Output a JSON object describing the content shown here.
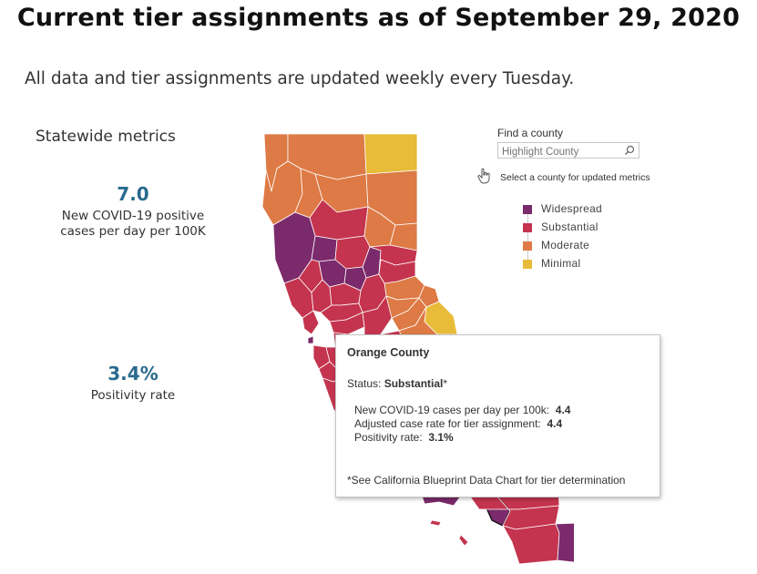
{
  "page": {
    "title": "Current tier assignments as of September 29, 2020",
    "subtitle": "All data and tier assignments are updated weekly every Tuesday."
  },
  "statewide": {
    "heading": "Statewide metrics",
    "cases_value": "7.0",
    "cases_label_line1": "New COVID-19 positive",
    "cases_label_line2": "cases per day per 100K",
    "positivity_value": "3.4%",
    "positivity_label": "Positivity rate"
  },
  "search": {
    "label": "Find a county",
    "placeholder": "Highlight County",
    "hint": "Select a county for updated metrics"
  },
  "legend": [
    {
      "label": "Widespread",
      "color": "#7b2a6b"
    },
    {
      "label": "Substantial",
      "color": "#c4344e"
    },
    {
      "label": "Moderate",
      "color": "#dd7a45"
    },
    {
      "label": "Minimal",
      "color": "#e8bb38"
    }
  ],
  "tooltip": {
    "county": "Orange County",
    "status_prefix": "Status: ",
    "status_value": "Substantial",
    "status_suffix": "*",
    "cases_label": "New COVID-19 cases per day per 100k:",
    "cases_value": "4.4",
    "adjusted_label": "Adjusted case rate for tier assignment:",
    "adjusted_value": "4.4",
    "positivity_label": "Positivity rate:",
    "positivity_value": "3.1%",
    "note": "*See California Blueprint Data Chart for tier determination"
  },
  "colors": {
    "widespread": "#7b2a6b",
    "substantial": "#c4344e",
    "moderate": "#dd7a45",
    "minimal": "#e8bb38",
    "metric_value": "#2a6a8e"
  }
}
